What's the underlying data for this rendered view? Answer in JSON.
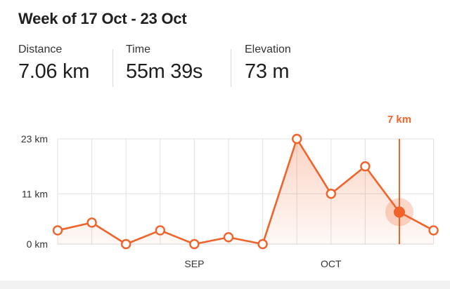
{
  "header": {
    "title": "Week of 17 Oct - 23 Oct"
  },
  "stats": [
    {
      "label": "Distance",
      "value": "7.06 km"
    },
    {
      "label": "Time",
      "value": "55m 39s"
    },
    {
      "label": "Elevation",
      "value": "73 m"
    }
  ],
  "colors": {
    "accent": "#f0632a",
    "area_fill": "#fbe0d4",
    "grid": "#e0e0e0",
    "text": "#1f1f1f"
  },
  "chart_data": {
    "type": "area",
    "weeks": 12,
    "values": [
      3,
      4.7,
      0,
      3,
      0,
      1.5,
      0,
      23,
      11,
      17,
      7,
      3
    ],
    "y_ticks": [
      {
        "value": 0,
        "label": "0 km"
      },
      {
        "value": 11,
        "label": "11 km"
      },
      {
        "value": 23,
        "label": "23 km"
      }
    ],
    "ylim": [
      0,
      23
    ],
    "x_labels": [
      {
        "index": 4,
        "label": "SEP"
      },
      {
        "index": 8,
        "label": "OCT"
      }
    ],
    "selected_index": 10,
    "selected_label": "7 km",
    "grid": true
  }
}
